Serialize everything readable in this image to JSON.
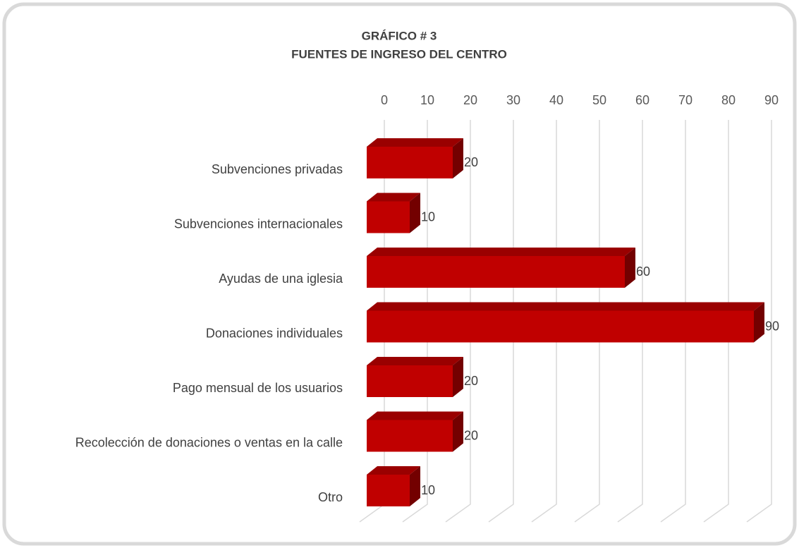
{
  "chart_data": {
    "type": "bar3d_horizontal",
    "title": "GRÁFICO # 3",
    "subtitle": "FUENTES DE INGRESO DEL CENTRO",
    "categories": [
      "Subvenciones privadas",
      "Subvenciones internacionales",
      "Ayudas de una iglesia",
      "Donaciones individuales",
      "Pago mensual de los usuarios",
      "Recolección de donaciones o ventas en la calle",
      "Otro"
    ],
    "values": [
      20,
      10,
      60,
      90,
      20,
      20,
      10
    ],
    "color": "#c00000",
    "xlim": [
      0,
      90
    ],
    "xticks": [
      0,
      10,
      20,
      30,
      40,
      50,
      60,
      70,
      80,
      90
    ],
    "grid": true
  }
}
